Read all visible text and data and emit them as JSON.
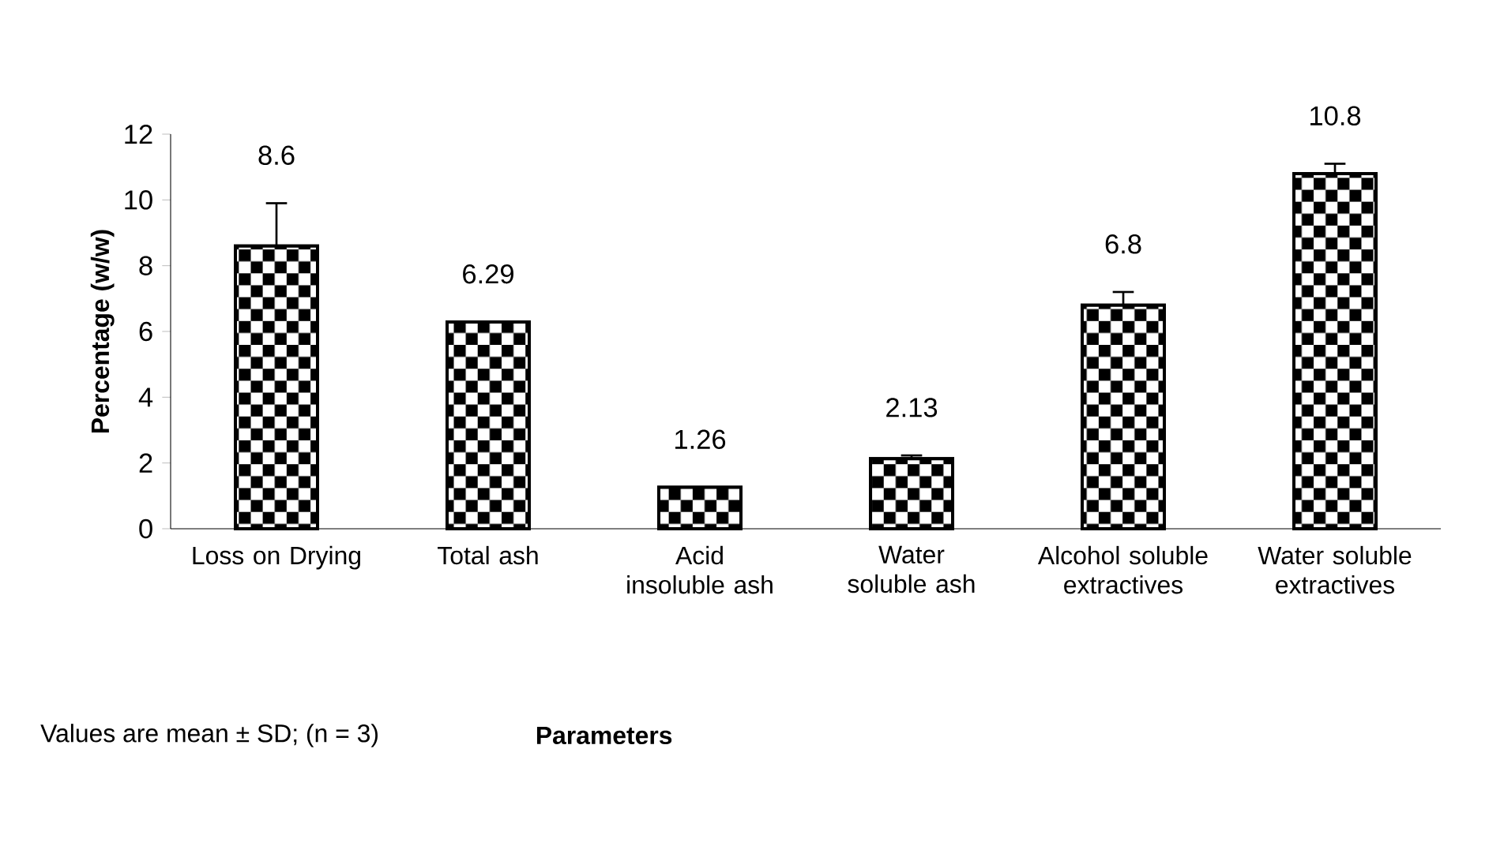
{
  "chart_data": {
    "type": "bar",
    "categories": [
      "Loss on Drying",
      "Total ash",
      "Acid insoluble ash",
      "Water soluble ash",
      "Alcohol soluble extractives",
      "Water soluble extractives"
    ],
    "values": [
      8.6,
      6.29,
      1.26,
      2.13,
      6.8,
      10.8
    ],
    "errors": [
      1.3,
      null,
      null,
      0.1,
      0.4,
      0.3
    ],
    "color": "#000000",
    "ylim": [
      0,
      12
    ],
    "yticks": [
      0,
      2,
      4,
      6,
      8,
      10,
      12
    ],
    "ylabel": "Percentage (w/w)",
    "data_labels": true,
    "annotations": [
      "Values are mean ± SD; (n = 3)",
      "Parameters"
    ]
  }
}
